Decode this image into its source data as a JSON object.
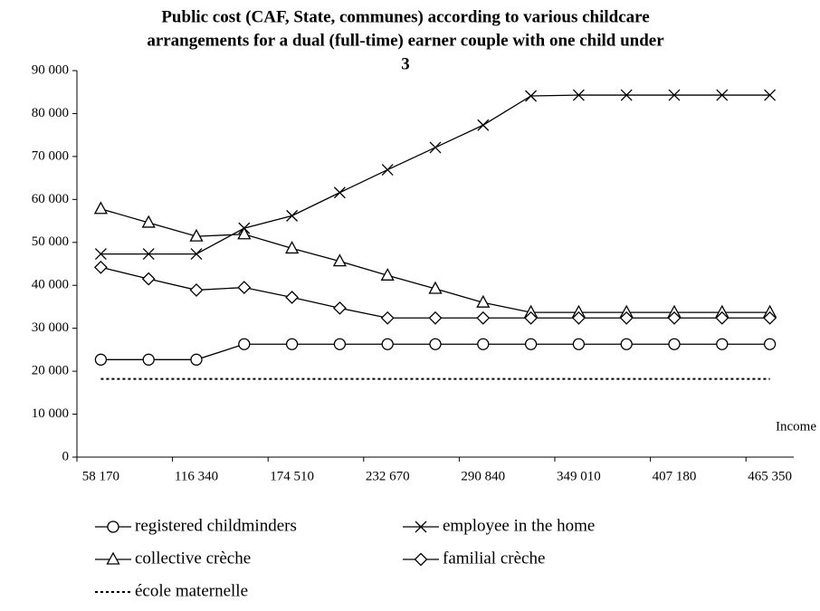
{
  "chart_data": {
    "type": "line",
    "title": [
      "Public cost (CAF, State, communes) according to various childcare",
      "arrangements for a dual  (full-time) earner couple with one child under",
      "3"
    ],
    "x_label": "Income",
    "categories": [
      "58 170",
      null,
      "116 340",
      null,
      "174 510",
      null,
      "232 670",
      null,
      "290 840",
      null,
      "349 010",
      null,
      "407 180",
      null,
      "465 350"
    ],
    "ylim": [
      0,
      90000
    ],
    "yticks": [
      0,
      {
        "value": 10000,
        "label": "10 000"
      },
      {
        "value": 20000,
        "label": "20 000"
      },
      {
        "value": 30000,
        "label": "30 000"
      },
      {
        "value": 40000,
        "label": "40 000"
      },
      {
        "value": 50000,
        "label": "50 000"
      },
      {
        "value": 60000,
        "label": "60 000"
      },
      {
        "value": 70000,
        "label": "70 000"
      },
      {
        "value": 80000,
        "label": "80 000"
      },
      {
        "value": 90000,
        "label": "90 000"
      }
    ],
    "series": [
      {
        "name": "registered childminders",
        "color": "#000000",
        "marker": "circle",
        "values": [
          22700,
          22700,
          22700,
          26300,
          26300,
          26300,
          26300,
          26300,
          26300,
          26300,
          26300,
          26300,
          26300,
          26300,
          26300
        ]
      },
      {
        "name": "employee in the home",
        "color": "#000000",
        "marker": "x",
        "values": [
          47300,
          47300,
          47300,
          53300,
          56200,
          61600,
          66900,
          72100,
          77300,
          84100,
          84300,
          84300,
          84300,
          84300,
          84300
        ]
      },
      {
        "name": "collective crèche",
        "color": "#000000",
        "marker": "triangle",
        "values": [
          57800,
          54600,
          51400,
          51900,
          48600,
          45600,
          42300,
          39200,
          36000,
          33700,
          33700,
          33700,
          33700,
          33700,
          33700
        ]
      },
      {
        "name": "familial crèche",
        "color": "#000000",
        "marker": "diamond",
        "values": [
          44200,
          41500,
          38900,
          39500,
          37200,
          34700,
          32400,
          32400,
          32400,
          32400,
          32400,
          32400,
          32400,
          32400,
          32400
        ]
      },
      {
        "name": "école maternelle",
        "color": "#000000",
        "marker": "none",
        "dash": "dotted",
        "values": [
          18200,
          18200,
          18200,
          18200,
          18200,
          18200,
          18200,
          18200,
          18200,
          18200,
          18200,
          18200,
          18200,
          18200,
          18200
        ]
      }
    ]
  }
}
